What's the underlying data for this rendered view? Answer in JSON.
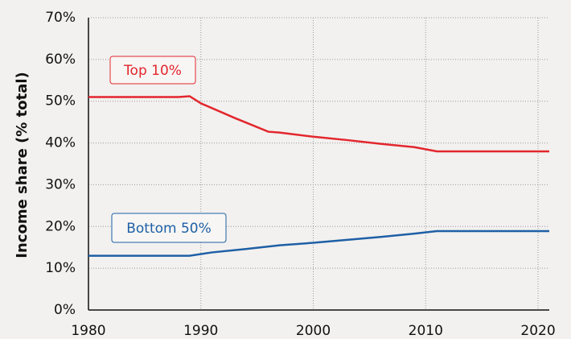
{
  "chart_data": {
    "type": "line",
    "y_label": "Income share (% total)",
    "xlim": [
      1980,
      2021
    ],
    "xticks": [
      1980,
      1990,
      2000,
      2010,
      2020
    ],
    "ylim": [
      0,
      70
    ],
    "yticks": [
      {
        "value": 0,
        "label": "0%"
      },
      {
        "value": 10,
        "label": "10%"
      },
      {
        "value": 20,
        "label": "20%"
      },
      {
        "value": 30,
        "label": "30%"
      },
      {
        "value": 40,
        "label": "40%"
      },
      {
        "value": 50,
        "label": "50%"
      },
      {
        "value": 60,
        "label": "60%"
      },
      {
        "value": 70,
        "label": "70%"
      }
    ],
    "grid": true,
    "series": [
      {
        "name": "Top 10%",
        "color": "#e3262d",
        "x": [
          1980,
          1981,
          1988,
          1989,
          1990,
          1993,
          1996,
          1997,
          2000,
          2003,
          2006,
          2009,
          2011,
          2021
        ],
        "values": [
          51,
          51,
          51,
          51.2,
          49.5,
          46,
          42.7,
          42.5,
          41.5,
          40.7,
          39.8,
          39,
          38,
          38
        ]
      },
      {
        "name": "Bottom 50%",
        "color": "#1f5fa6",
        "x": [
          1980,
          1989,
          1991,
          1994,
          1997,
          2000,
          2003,
          2006,
          2009,
          2011,
          2021
        ],
        "values": [
          13,
          13,
          13.8,
          14.6,
          15.5,
          16.1,
          16.8,
          17.5,
          18.3,
          18.9,
          18.9
        ]
      }
    ]
  }
}
